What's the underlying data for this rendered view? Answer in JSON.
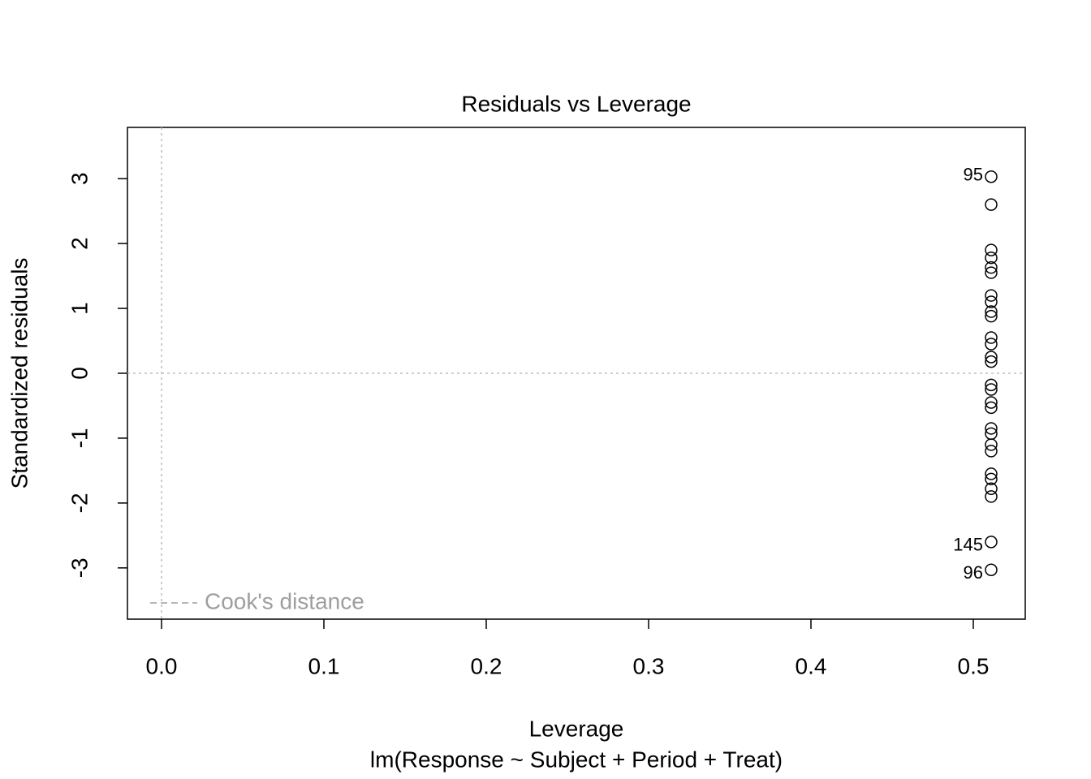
{
  "chart_data": {
    "type": "scatter",
    "title": "Residuals vs Leverage",
    "x_label": "Leverage",
    "subtitle": "lm(Response ~ Subject + Period + Treat)",
    "y_label": "Standardized residuals",
    "x": [
      0.511,
      0.511,
      0.511,
      0.511,
      0.511,
      0.511,
      0.511,
      0.511,
      0.511,
      0.511,
      0.511,
      0.511,
      0.511,
      0.511,
      0.511,
      0.511,
      0.511,
      0.511,
      0.511,
      0.511,
      0.511,
      0.511,
      0.511,
      0.511,
      0.511,
      0.511,
      0.511,
      0.511
    ],
    "values": [
      3.03,
      2.6,
      1.9,
      1.78,
      1.63,
      1.55,
      1.2,
      1.1,
      0.95,
      0.88,
      0.55,
      0.45,
      0.25,
      0.18,
      -0.18,
      -0.25,
      -0.45,
      -0.53,
      -0.85,
      -0.93,
      -1.1,
      -1.2,
      -1.55,
      -1.63,
      -1.78,
      -1.9,
      -2.6,
      -3.03
    ],
    "point_labels": [
      "95",
      null,
      null,
      null,
      null,
      null,
      null,
      null,
      null,
      null,
      null,
      null,
      null,
      null,
      null,
      null,
      null,
      null,
      null,
      null,
      null,
      null,
      null,
      null,
      null,
      null,
      "145",
      "96"
    ],
    "xlim": [
      -0.021,
      0.532
    ],
    "ylim": [
      -3.79,
      3.79
    ],
    "xticks": [
      {
        "value": 0,
        "label": "0.0"
      },
      0.1,
      0.2,
      0.3,
      0.4,
      0.5
    ],
    "yticks": [
      -3,
      -2,
      -1,
      0,
      1,
      2,
      3
    ],
    "hline": 0,
    "vline": 0,
    "legend": "bottomleft",
    "legend_label": "Cook's distance",
    "legend_color": "#9e9e9e",
    "refline_color": "#bebebe",
    "color": "#000000"
  }
}
